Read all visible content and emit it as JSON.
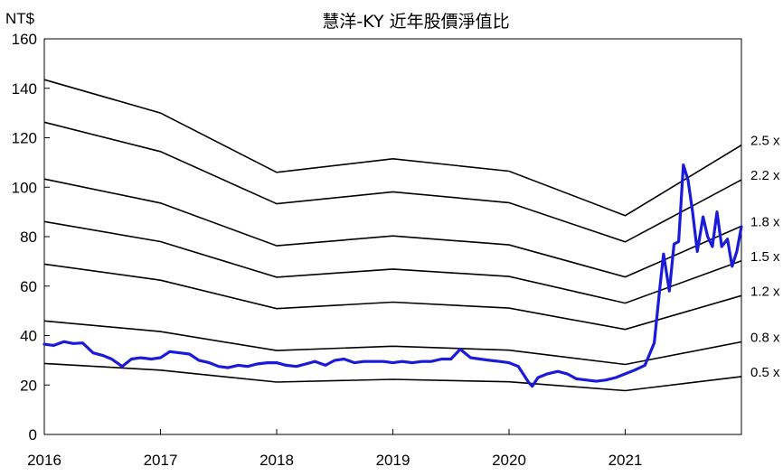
{
  "chart_data": {
    "type": "line",
    "title": "慧洋-KY 近年股價淨值比",
    "ylabel": "NT$",
    "xlabel": "",
    "ylim": [
      0,
      160
    ],
    "xlim": [
      2016.0,
      2022.0
    ],
    "y_ticks": [
      "0",
      "20",
      "40",
      "60",
      "80",
      "100",
      "120",
      "140",
      "160"
    ],
    "x_ticks": [
      "2016",
      "2017",
      "2018",
      "2019",
      "2020",
      "2021"
    ],
    "grid": false,
    "legend": "none",
    "band_multiples": [
      0.5,
      0.8,
      1.2,
      1.5,
      1.8,
      2.2,
      2.5
    ],
    "band_labels": [
      "0.5 x",
      "0.8 x",
      "1.2 x",
      "1.5 x",
      "1.8 x",
      "2.2 x",
      "2.5 x"
    ],
    "band_colors": "#000000",
    "price_color": "#1a1adb",
    "x": [
      2016.0,
      2016.08,
      2016.17,
      2016.25,
      2016.33,
      2016.42,
      2016.5,
      2016.58,
      2016.67,
      2016.75,
      2016.83,
      2016.92,
      2017.0,
      2017.08,
      2017.17,
      2017.25,
      2017.33,
      2017.42,
      2017.5,
      2017.58,
      2017.67,
      2017.75,
      2017.83,
      2017.92,
      2018.0,
      2018.08,
      2018.17,
      2018.25,
      2018.33,
      2018.42,
      2018.5,
      2018.58,
      2018.67,
      2018.75,
      2018.83,
      2018.92,
      2019.0,
      2019.08,
      2019.17,
      2019.25,
      2019.33,
      2019.42,
      2019.5,
      2019.58,
      2019.67,
      2019.75,
      2019.83,
      2019.92,
      2020.0,
      2020.08,
      2020.17,
      2020.2,
      2020.25,
      2020.33,
      2020.42,
      2020.5,
      2020.58,
      2020.67,
      2020.75,
      2020.83,
      2020.92,
      2021.0,
      2021.08,
      2021.17,
      2021.25,
      2021.3,
      2021.33,
      2021.38,
      2021.42,
      2021.46,
      2021.5,
      2021.54,
      2021.58,
      2021.62,
      2021.67,
      2021.71,
      2021.75,
      2021.79,
      2021.83,
      2021.88,
      2021.92,
      2021.96,
      2022.0
    ],
    "price": [
      36.5,
      36.0,
      37.5,
      36.8,
      37.0,
      33.0,
      32.0,
      30.5,
      27.5,
      30.5,
      31.0,
      30.5,
      31.0,
      33.5,
      33.0,
      32.5,
      30.0,
      29.0,
      27.5,
      27.0,
      28.0,
      27.5,
      28.5,
      29.0,
      29.0,
      28.0,
      27.5,
      28.5,
      29.5,
      28.0,
      30.0,
      30.5,
      29.0,
      29.5,
      29.5,
      29.5,
      29.0,
      29.5,
      29.0,
      29.5,
      29.5,
      30.5,
      30.5,
      34.5,
      31.0,
      30.5,
      30.0,
      29.5,
      29.0,
      27.5,
      21.0,
      19.5,
      23.0,
      24.5,
      25.5,
      24.5,
      22.5,
      22.0,
      21.5,
      22.0,
      23.0,
      24.5,
      26.0,
      28.0,
      37.0,
      60.0,
      73.0,
      58.0,
      77.0,
      78.0,
      109.0,
      103.0,
      90.0,
      74.0,
      88.0,
      80.0,
      76.0,
      90.0,
      76.0,
      79.0,
      68.0,
      74.0,
      84.0
    ],
    "bvps_x": [
      2016.0,
      2017.0,
      2018.0,
      2019.0,
      2020.0,
      2021.0,
      2022.0
    ],
    "bvps": [
      57.4,
      52.0,
      42.4,
      44.6,
      42.6,
      35.4,
      46.8
    ]
  }
}
